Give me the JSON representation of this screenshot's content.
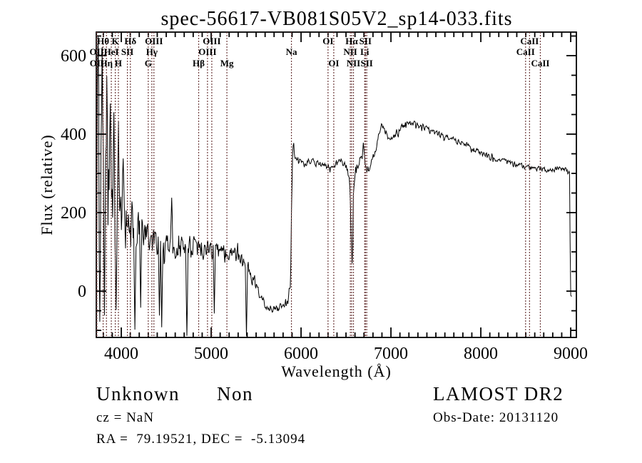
{
  "figure": {
    "annotations": {
      "class": "Unknown",
      "subclass": "Non",
      "survey": "LAMOST DR2",
      "cz": "cz = NaN",
      "obs_date": "Obs-Date: 20131120",
      "ra_dec": "RA =  79.19521, DEC =  -5.13094"
    }
  },
  "chart_data": {
    "type": "line",
    "title": "spec-56617-VB081S05V2_sp14-033.fits",
    "xlabel": "Wavelength (Å)",
    "ylabel": "Flux (relative)",
    "x_range": [
      3722,
      9063
    ],
    "y_range": [
      -118,
      660
    ],
    "x_ticks": [
      4000,
      5000,
      6000,
      7000,
      8000,
      9000
    ],
    "x_minor_step": 100,
    "y_ticks": [
      0,
      200,
      400,
      600
    ],
    "y_minor_step": 50,
    "grid": false,
    "legend": null,
    "colors": {
      "trace": "#000000",
      "line_marker": "#6f3d3d",
      "axis": "#000000",
      "background": "#ffffff"
    },
    "spectral_lines": [
      {
        "label": "Hθ",
        "wavelength": 3798,
        "row": 1
      },
      {
        "label": "K",
        "wavelength": 3933,
        "row": 1
      },
      {
        "label": "Hδ",
        "wavelength": 4101,
        "row": 1
      },
      {
        "label": "OIII",
        "wavelength": 4363,
        "row": 1
      },
      {
        "label": "OIII",
        "wavelength": 5007,
        "row": 1
      },
      {
        "label": "OI",
        "wavelength": 6300,
        "row": 1
      },
      {
        "label": "Hα",
        "wavelength": 6563,
        "row": 1
      },
      {
        "label": "SII",
        "wavelength": 6716,
        "row": 1
      },
      {
        "label": "CaII",
        "wavelength": 8542,
        "row": 1
      },
      {
        "label": "OII",
        "wavelength": 3727,
        "row": 2
      },
      {
        "label": "HeI",
        "wavelength": 3889,
        "row": 2
      },
      {
        "label": "SII",
        "wavelength": 4068,
        "row": 2
      },
      {
        "label": "Hγ",
        "wavelength": 4340,
        "row": 2
      },
      {
        "label": "OIII",
        "wavelength": 4959,
        "row": 2
      },
      {
        "label": "Na",
        "wavelength": 5893,
        "row": 2
      },
      {
        "label": "NII",
        "wavelength": 6548,
        "row": 2
      },
      {
        "label": "Li",
        "wavelength": 6708,
        "row": 2
      },
      {
        "label": "CaII",
        "wavelength": 8498,
        "row": 2
      },
      {
        "label": "OII",
        "wavelength": 3729,
        "row": 3
      },
      {
        "label": "Hη",
        "wavelength": 3835,
        "row": 3
      },
      {
        "label": "H",
        "wavelength": 3968,
        "row": 3
      },
      {
        "label": "G",
        "wavelength": 4300,
        "row": 3
      },
      {
        "label": "Hβ",
        "wavelength": 4861,
        "row": 3
      },
      {
        "label": "Mg",
        "wavelength": 5175,
        "row": 3
      },
      {
        "label": "OI",
        "wavelength": 6364,
        "row": 3
      },
      {
        "label": "NII",
        "wavelength": 6583,
        "row": 3
      },
      {
        "label": "SII",
        "wavelength": 6731,
        "row": 3
      },
      {
        "label": "CaII",
        "wavelength": 8662,
        "row": 3
      }
    ],
    "envelope": [
      [
        3722,
        330,
        310
      ],
      [
        3750,
        340,
        300
      ],
      [
        3780,
        330,
        285
      ],
      [
        3800,
        295,
        240
      ],
      [
        3830,
        255,
        200
      ],
      [
        3860,
        235,
        175
      ],
      [
        3890,
        220,
        155
      ],
      [
        3920,
        215,
        145
      ],
      [
        3950,
        205,
        130
      ],
      [
        3980,
        198,
        118
      ],
      [
        4010,
        192,
        106
      ],
      [
        4050,
        178,
        96
      ],
      [
        4100,
        168,
        95
      ],
      [
        4150,
        152,
        86
      ],
      [
        4200,
        142,
        80
      ],
      [
        4250,
        133,
        70
      ],
      [
        4300,
        136,
        62
      ],
      [
        4350,
        124,
        60
      ],
      [
        4400,
        113,
        66
      ],
      [
        4450,
        115,
        60
      ],
      [
        4500,
        122,
        52
      ],
      [
        4550,
        120,
        50
      ],
      [
        4600,
        118,
        48
      ],
      [
        4650,
        113,
        46
      ],
      [
        4700,
        110,
        45
      ],
      [
        4750,
        112,
        44
      ],
      [
        4800,
        113,
        42
      ],
      [
        4850,
        108,
        41
      ],
      [
        4900,
        110,
        40
      ],
      [
        4950,
        106,
        38
      ],
      [
        5000,
        105,
        38
      ],
      [
        5060,
        100,
        36
      ],
      [
        5120,
        98,
        33
      ],
      [
        5175,
        94,
        31
      ],
      [
        5240,
        92,
        30
      ],
      [
        5300,
        85,
        28
      ],
      [
        5360,
        70,
        26
      ],
      [
        5420,
        50,
        24
      ],
      [
        5480,
        25,
        22
      ],
      [
        5540,
        -2,
        20
      ],
      [
        5590,
        -28,
        17
      ],
      [
        5650,
        -42,
        15
      ],
      [
        5720,
        -46,
        14
      ],
      [
        5790,
        -41,
        15
      ],
      [
        5840,
        -30,
        18
      ],
      [
        5865,
        -10,
        25
      ],
      [
        5882,
        60,
        55
      ],
      [
        5892,
        180,
        65
      ],
      [
        5900,
        295,
        55
      ],
      [
        5908,
        350,
        35
      ],
      [
        5916,
        402,
        18
      ],
      [
        5926,
        362,
        22
      ],
      [
        5946,
        336,
        16
      ],
      [
        5980,
        328,
        13
      ],
      [
        6030,
        323,
        12
      ],
      [
        6080,
        330,
        12
      ],
      [
        6140,
        328,
        12
      ],
      [
        6200,
        324,
        12
      ],
      [
        6260,
        321,
        13
      ],
      [
        6310,
        317,
        14
      ],
      [
        6360,
        322,
        13
      ],
      [
        6420,
        328,
        12
      ],
      [
        6470,
        322,
        12
      ],
      [
        6520,
        311,
        15
      ],
      [
        6545,
        245,
        35
      ],
      [
        6558,
        125,
        25
      ],
      [
        6570,
        115,
        28
      ],
      [
        6582,
        225,
        30
      ],
      [
        6605,
        312,
        18
      ],
      [
        6640,
        330,
        16
      ],
      [
        6675,
        338,
        15
      ],
      [
        6692,
        352,
        18
      ],
      [
        6710,
        330,
        15
      ],
      [
        6730,
        315,
        14
      ],
      [
        6745,
        303,
        13
      ],
      [
        6768,
        318,
        13
      ],
      [
        6800,
        336,
        14
      ],
      [
        6850,
        382,
        16
      ],
      [
        6897,
        424,
        13
      ],
      [
        6940,
        408,
        14
      ],
      [
        7000,
        381,
        13
      ],
      [
        7050,
        398,
        13
      ],
      [
        7100,
        414,
        12
      ],
      [
        7150,
        424,
        11
      ],
      [
        7190,
        430,
        11
      ],
      [
        7240,
        426,
        10
      ],
      [
        7300,
        422,
        10
      ],
      [
        7360,
        418,
        10
      ],
      [
        7430,
        409,
        10
      ],
      [
        7520,
        400,
        10
      ],
      [
        7620,
        392,
        10
      ],
      [
        7720,
        383,
        10
      ],
      [
        7820,
        372,
        10
      ],
      [
        7920,
        362,
        10
      ],
      [
        8020,
        350,
        10
      ],
      [
        8120,
        340,
        10
      ],
      [
        8220,
        333,
        10
      ],
      [
        8320,
        326,
        9
      ],
      [
        8420,
        321,
        9
      ],
      [
        8500,
        316,
        9
      ],
      [
        8580,
        313,
        9
      ],
      [
        8660,
        312,
        9
      ],
      [
        8740,
        308,
        9
      ],
      [
        8800,
        307,
        9
      ],
      [
        8860,
        314,
        9
      ],
      [
        8910,
        310,
        9
      ],
      [
        8950,
        312,
        8
      ],
      [
        8988,
        300,
        6
      ],
      [
        8993,
        140,
        5
      ],
      [
        8998,
        -10,
        3
      ],
      [
        9015,
        -14,
        3
      ]
    ],
    "spikes": [
      [
        3740,
        648
      ],
      [
        3762,
        -78
      ],
      [
        3790,
        622
      ],
      [
        3813,
        -62
      ],
      [
        3838,
        548
      ],
      [
        3875,
        478
      ],
      [
        3918,
        456
      ],
      [
        3944,
        -48
      ],
      [
        3968,
        432
      ],
      [
        4023,
        338
      ],
      [
        4151,
        -98
      ],
      [
        4214,
        -42
      ],
      [
        4424,
        -62
      ],
      [
        4453,
        -92
      ],
      [
        4562,
        238
      ],
      [
        4731,
        -120
      ],
      [
        5033,
        -57
      ],
      [
        5390,
        -128
      ],
      [
        6570,
        71
      ],
      [
        6692,
        378
      ]
    ],
    "noise_seed": 20131120
  }
}
